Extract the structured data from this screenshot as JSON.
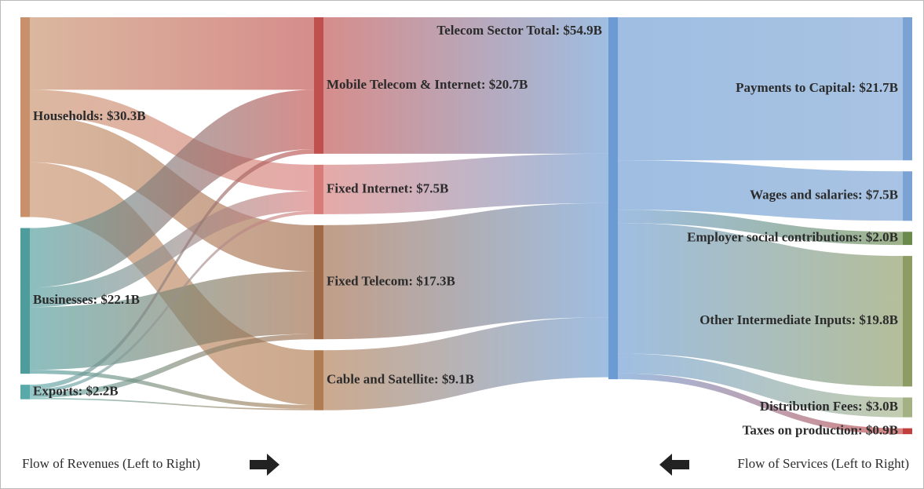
{
  "chart_data": {
    "type": "sankey",
    "nodes": [
      {
        "label": "Households: $30.3B",
        "value": 30.3,
        "color": "#c8916c"
      },
      {
        "label": "Businesses: $22.1B",
        "value": 22.1,
        "color": "#4f9c9c"
      },
      {
        "label": "Exports: $2.2B",
        "value": 2.2,
        "color": "#5aa9a9"
      },
      {
        "label": "Mobile Telecom & Internet: $20.7B",
        "value": 20.7,
        "color": "#c0504d"
      },
      {
        "label": "Fixed Internet: $7.5B",
        "value": 7.5,
        "color": "#d87c7a"
      },
      {
        "label": "Fixed Telecom: $17.3B",
        "value": 17.3,
        "color": "#a06a48"
      },
      {
        "label": "Cable and Satellite: $9.1B",
        "value": 9.1,
        "color": "#b07c52"
      },
      {
        "label": "Telecom Sector Total: $54.9B",
        "value": 54.9,
        "color": "#6b9bd2"
      },
      {
        "label": "Payments to Capital: $21.7B",
        "value": 21.7,
        "color": "#7aa3d4"
      },
      {
        "label": "Wages and salaries: $7.5B",
        "value": 7.5,
        "color": "#7aa3d4"
      },
      {
        "label": "Employer social contributions: $2.0B",
        "value": 2.0,
        "color": "#6a8a4c"
      },
      {
        "label": "Other Intermediate Inputs: $19.8B",
        "value": 19.8,
        "color": "#8c9c64"
      },
      {
        "label": "Distribution Fees: $3.0B",
        "value": 3.0,
        "color": "#a3b184"
      },
      {
        "label": "Taxes on production: $0.9B",
        "value": 0.9,
        "color": "#c0403e"
      }
    ],
    "links": [
      {
        "source": 0,
        "target": 3,
        "value": 11.0
      },
      {
        "source": 0,
        "target": 4,
        "value": 4.0
      },
      {
        "source": 0,
        "target": 5,
        "value": 7.0
      },
      {
        "source": 0,
        "target": 6,
        "value": 8.3
      },
      {
        "source": 1,
        "target": 3,
        "value": 9.0
      },
      {
        "source": 1,
        "target": 4,
        "value": 3.0
      },
      {
        "source": 1,
        "target": 5,
        "value": 9.5
      },
      {
        "source": 1,
        "target": 6,
        "value": 0.6
      },
      {
        "source": 2,
        "target": 3,
        "value": 0.7
      },
      {
        "source": 2,
        "target": 4,
        "value": 0.5
      },
      {
        "source": 2,
        "target": 5,
        "value": 0.8
      },
      {
        "source": 2,
        "target": 6,
        "value": 0.2
      },
      {
        "source": 3,
        "target": 7,
        "value": 20.7
      },
      {
        "source": 4,
        "target": 7,
        "value": 7.5
      },
      {
        "source": 5,
        "target": 7,
        "value": 17.3
      },
      {
        "source": 6,
        "target": 7,
        "value": 9.1
      },
      {
        "source": 7,
        "target": 8,
        "value": 21.7
      },
      {
        "source": 7,
        "target": 9,
        "value": 7.5
      },
      {
        "source": 7,
        "target": 10,
        "value": 2.0
      },
      {
        "source": 7,
        "target": 11,
        "value": 19.8
      },
      {
        "source": 7,
        "target": 12,
        "value": 3.0
      },
      {
        "source": 7,
        "target": 13,
        "value": 0.9
      }
    ],
    "annotations": [
      "Flow of Revenues (Left to Right)",
      "Flow of Services (Left to Right)"
    ]
  }
}
